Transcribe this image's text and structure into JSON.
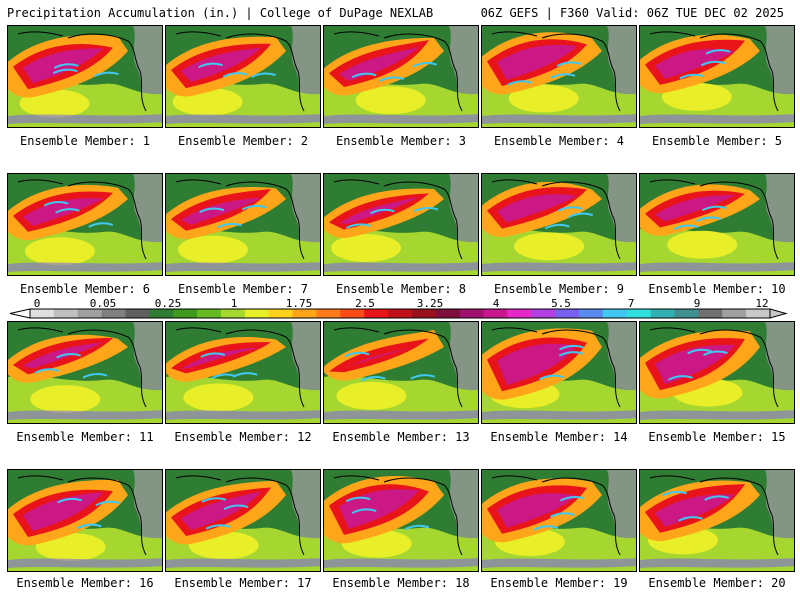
{
  "header": {
    "left": "Precipitation Accumulation (in.) | College of DuPage NEXLAB",
    "right": "06Z GEFS | F360 Valid: 06Z TUE DEC 02 2025"
  },
  "members": [
    {
      "label": "Ensemble Member: 1"
    },
    {
      "label": "Ensemble Member: 2"
    },
    {
      "label": "Ensemble Member: 3"
    },
    {
      "label": "Ensemble Member: 4"
    },
    {
      "label": "Ensemble Member: 5"
    },
    {
      "label": "Ensemble Member: 6"
    },
    {
      "label": "Ensemble Member: 7"
    },
    {
      "label": "Ensemble Member: 8"
    },
    {
      "label": "Ensemble Member: 9"
    },
    {
      "label": "Ensemble Member: 10"
    },
    {
      "label": "Ensemble Member: 11"
    },
    {
      "label": "Ensemble Member: 12"
    },
    {
      "label": "Ensemble Member: 13"
    },
    {
      "label": "Ensemble Member: 14"
    },
    {
      "label": "Ensemble Member: 15"
    },
    {
      "label": "Ensemble Member: 16"
    },
    {
      "label": "Ensemble Member: 17"
    },
    {
      "label": "Ensemble Member: 18"
    },
    {
      "label": "Ensemble Member: 19"
    },
    {
      "label": "Ensemble Member: 20"
    }
  ],
  "colorbar": {
    "ticks": [
      "0",
      "0.05",
      "0.25",
      "1",
      "1.75",
      "2.5",
      "3.25",
      "4",
      "5.5",
      "7",
      "9",
      "12"
    ],
    "colors": [
      "#e0e0e0",
      "#c0c0c0",
      "#a0a0a0",
      "#808080",
      "#606060",
      "#2e7d32",
      "#3e9a1e",
      "#66bb22",
      "#a6d630",
      "#e8ef28",
      "#ffd21a",
      "#ffa51a",
      "#ff7a1a",
      "#ff4a1a",
      "#e8141a",
      "#c0101a",
      "#98101e",
      "#800e3a",
      "#a0106c",
      "#c81890",
      "#e628c8",
      "#b040e0",
      "#7a60f0",
      "#5a8cf0",
      "#40c8f0",
      "#30e0e0",
      "#30b0b0",
      "#409090",
      "#707070",
      "#a0a0a0",
      "#c8c8c8"
    ]
  }
}
